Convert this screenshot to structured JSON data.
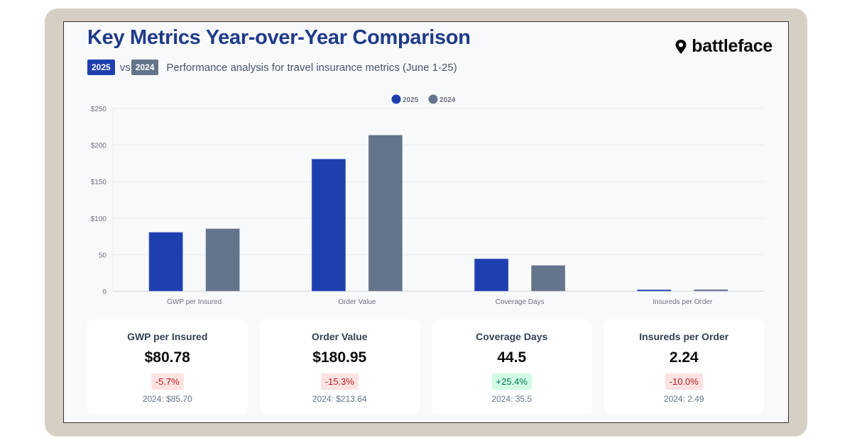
{
  "header": {
    "title": "Key Metrics Year-over-Year Comparison",
    "badge_current": "2025",
    "vs": "vs",
    "badge_previous": "2024",
    "description": "Performance analysis for travel insurance metrics (June 1-25)",
    "logo_text": "battleface"
  },
  "colors": {
    "current": "#1e40af",
    "previous": "#64748b",
    "title": "#1e3a8a"
  },
  "chart_data": {
    "type": "bar",
    "title": "",
    "xlabel": "",
    "ylabel": "",
    "categories": [
      "GWP per Insured",
      "Order Value",
      "Coverage Days",
      "Insureds per Order"
    ],
    "series": [
      {
        "name": "2025",
        "values": [
          80.78,
          180.95,
          44.5,
          2.24
        ]
      },
      {
        "name": "2024",
        "values": [
          85.7,
          213.64,
          35.5,
          2.49
        ]
      }
    ],
    "ylim": [
      0,
      250
    ],
    "yticks": [
      0,
      50,
      100,
      150,
      200,
      250
    ],
    "ytick_labels": [
      "0",
      "50",
      "$100",
      "$150",
      "$200",
      "$250"
    ],
    "grid": true,
    "legend": "top-center"
  },
  "cards": [
    {
      "label": "GWP per Insured",
      "value": "$80.78",
      "change": "-5.7%",
      "direction": "down",
      "previous": "2024: $85.70"
    },
    {
      "label": "Order Value",
      "value": "$180.95",
      "change": "-15.3%",
      "direction": "down",
      "previous": "2024: $213.64"
    },
    {
      "label": "Coverage Days",
      "value": "44.5",
      "change": "+25.4%",
      "direction": "up",
      "previous": "2024: 35.5"
    },
    {
      "label": "Insureds per Order",
      "value": "2.24",
      "change": "-10.0%",
      "direction": "down",
      "previous": "2024: 2.49"
    }
  ]
}
